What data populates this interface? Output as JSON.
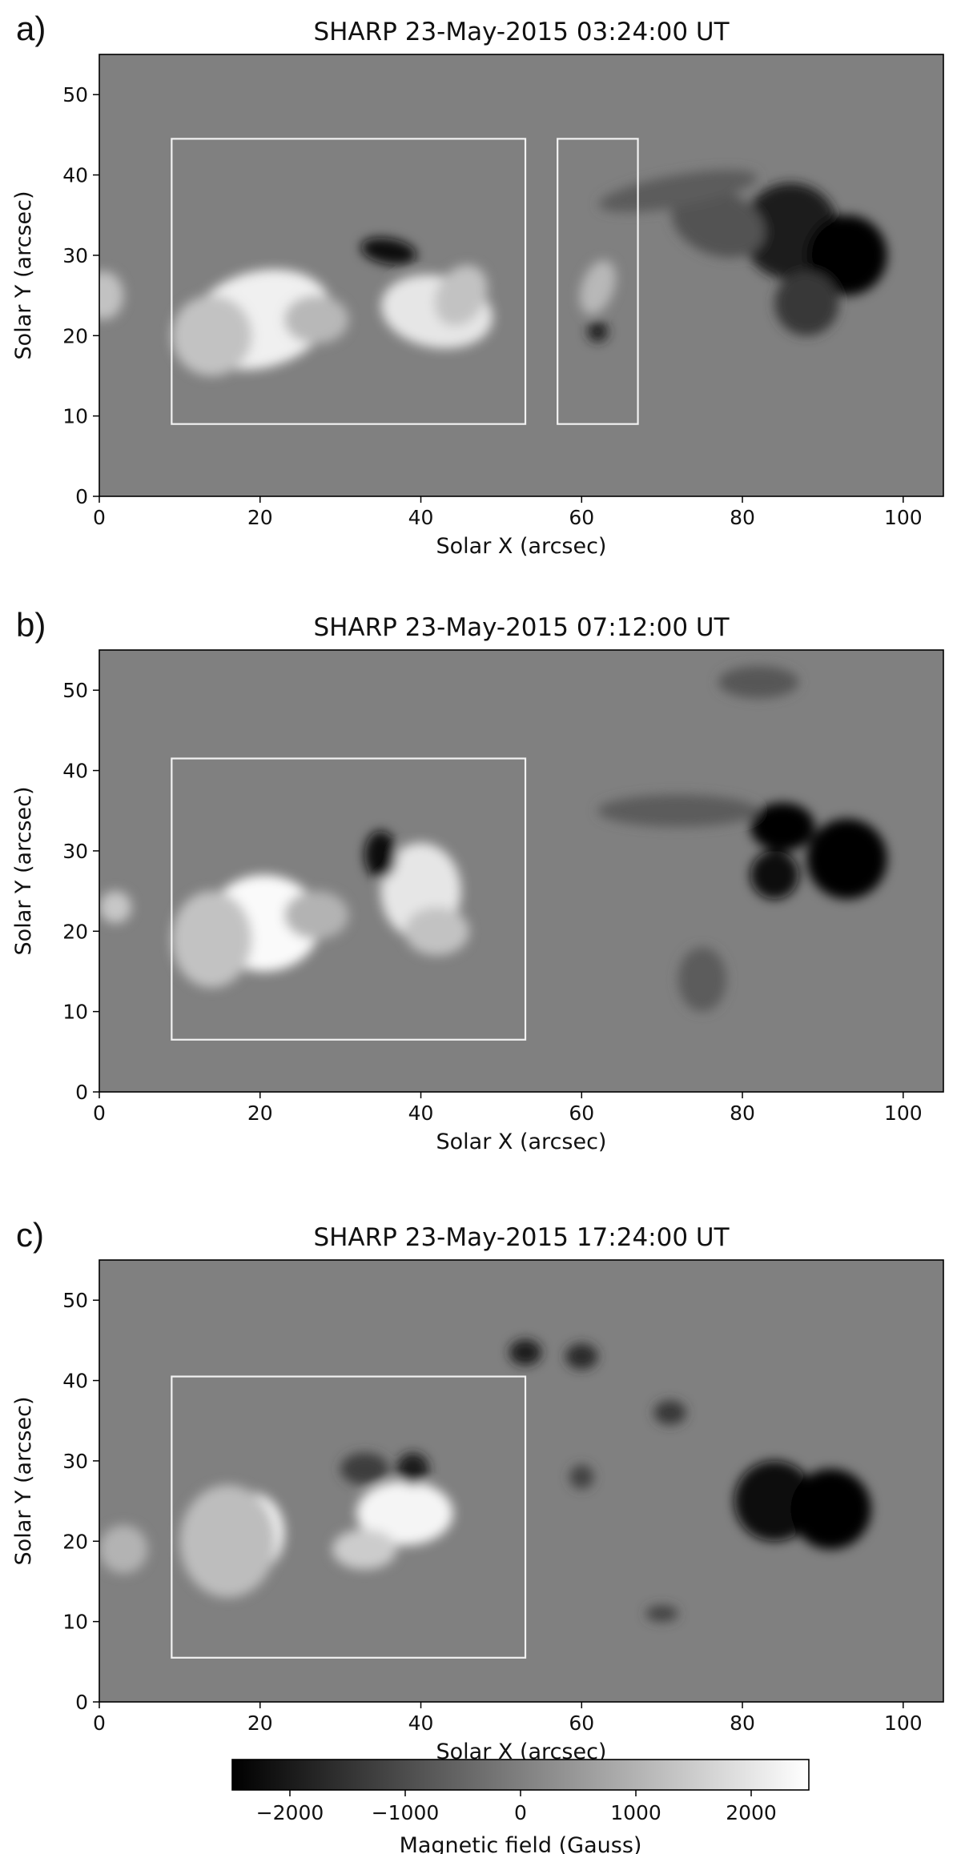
{
  "panels": [
    {
      "letter": "a)",
      "title": "SHARP 23-May-2015 03:24:00 UT",
      "boxes": [
        {
          "x": [
            9,
            53
          ],
          "y": [
            9,
            44.5
          ]
        },
        {
          "x": [
            57,
            67
          ],
          "y": [
            9,
            44.5
          ]
        }
      ],
      "blobs": [
        {
          "x": 20,
          "y": 22,
          "rx": 9,
          "ry": 6,
          "v": 2200,
          "rot": -15
        },
        {
          "x": 14,
          "y": 20,
          "rx": 5,
          "ry": 5,
          "v": 1300,
          "rot": 0
        },
        {
          "x": 27,
          "y": 22,
          "rx": 4,
          "ry": 3,
          "v": 1100,
          "rot": 0
        },
        {
          "x": 42,
          "y": 23,
          "rx": 7,
          "ry": 4.5,
          "v": 2000,
          "rot": 10
        },
        {
          "x": 45,
          "y": 25,
          "rx": 3,
          "ry": 4,
          "v": 1300,
          "rot": 30
        },
        {
          "x": 36,
          "y": 30.5,
          "rx": 3.5,
          "ry": 1.6,
          "v": -2200,
          "rot": 10
        },
        {
          "x": 62,
          "y": 26,
          "rx": 2,
          "ry": 3.5,
          "v": 1100,
          "rot": 20
        },
        {
          "x": 62,
          "y": 20.5,
          "rx": 1.3,
          "ry": 1.3,
          "v": -1800,
          "rot": 0
        },
        {
          "x": 0.5,
          "y": 25,
          "rx": 2.5,
          "ry": 3,
          "v": 1300,
          "rot": 0
        },
        {
          "x": 86,
          "y": 33,
          "rx": 6,
          "ry": 6,
          "v": -2000,
          "rot": 0
        },
        {
          "x": 93,
          "y": 30,
          "rx": 5,
          "ry": 5,
          "v": -2600,
          "rot": 0
        },
        {
          "x": 88,
          "y": 24,
          "rx": 4,
          "ry": 4,
          "v": -1400,
          "rot": 0
        },
        {
          "x": 77,
          "y": 34,
          "rx": 6,
          "ry": 4,
          "v": -900,
          "rot": 20
        },
        {
          "x": 72,
          "y": 38,
          "rx": 10,
          "ry": 2,
          "v": -700,
          "rot": -10
        }
      ]
    },
    {
      "letter": "b)",
      "title": "SHARP 23-May-2015 07:12:00 UT",
      "boxes": [
        {
          "x": [
            9,
            53
          ],
          "y": [
            6.5,
            41.5
          ]
        }
      ],
      "blobs": [
        {
          "x": 20.5,
          "y": 21,
          "rx": 7,
          "ry": 6,
          "v": 2400,
          "rot": 0
        },
        {
          "x": 14,
          "y": 19,
          "rx": 5,
          "ry": 6,
          "v": 1300,
          "rot": 0
        },
        {
          "x": 27,
          "y": 22,
          "rx": 4,
          "ry": 3,
          "v": 1000,
          "rot": 0
        },
        {
          "x": 40,
          "y": 25,
          "rx": 5,
          "ry": 6,
          "v": 2000,
          "rot": 0
        },
        {
          "x": 42,
          "y": 20,
          "rx": 4,
          "ry": 3,
          "v": 1300,
          "rot": 0
        },
        {
          "x": 35,
          "y": 29.5,
          "rx": 2,
          "ry": 3,
          "v": -2200,
          "rot": 0
        },
        {
          "x": 2,
          "y": 23,
          "rx": 2,
          "ry": 2,
          "v": 1400,
          "rot": 0
        },
        {
          "x": 85,
          "y": 33,
          "rx": 4,
          "ry": 3,
          "v": -2400,
          "rot": 0
        },
        {
          "x": 84,
          "y": 27,
          "rx": 3,
          "ry": 3,
          "v": -2200,
          "rot": 0
        },
        {
          "x": 93,
          "y": 29,
          "rx": 5,
          "ry": 5,
          "v": -2600,
          "rot": 0
        },
        {
          "x": 72,
          "y": 35,
          "rx": 10,
          "ry": 2,
          "v": -700,
          "rot": 0
        },
        {
          "x": 82,
          "y": 51,
          "rx": 5,
          "ry": 2,
          "v": -800,
          "rot": 0
        },
        {
          "x": 75,
          "y": 14,
          "rx": 3,
          "ry": 4,
          "v": -700,
          "rot": 0
        }
      ]
    },
    {
      "letter": "c)",
      "title": "SHARP 23-May-2015 17:24:00 UT",
      "boxes": [
        {
          "x": [
            9,
            53
          ],
          "y": [
            5.5,
            40.5
          ]
        }
      ],
      "blobs": [
        {
          "x": 19,
          "y": 21,
          "rx": 4,
          "ry": 5,
          "v": 2400,
          "rot": 0
        },
        {
          "x": 16,
          "y": 20,
          "rx": 6,
          "ry": 7,
          "v": 1200,
          "rot": 0
        },
        {
          "x": 38,
          "y": 23.5,
          "rx": 6,
          "ry": 4,
          "v": 2300,
          "rot": 0
        },
        {
          "x": 33,
          "y": 19,
          "rx": 4,
          "ry": 2.5,
          "v": 1500,
          "rot": 0
        },
        {
          "x": 39,
          "y": 29,
          "rx": 2,
          "ry": 2,
          "v": -2000,
          "rot": 0
        },
        {
          "x": 33,
          "y": 29,
          "rx": 3,
          "ry": 2,
          "v": -1300,
          "rot": 0
        },
        {
          "x": 53,
          "y": 43.5,
          "rx": 2,
          "ry": 1.6,
          "v": -1900,
          "rot": 0
        },
        {
          "x": 60,
          "y": 43,
          "rx": 2,
          "ry": 1.6,
          "v": -1700,
          "rot": 0
        },
        {
          "x": 71,
          "y": 36,
          "rx": 2,
          "ry": 1.5,
          "v": -1400,
          "rot": 0
        },
        {
          "x": 84,
          "y": 25,
          "rx": 5,
          "ry": 5,
          "v": -2200,
          "rot": 0
        },
        {
          "x": 91,
          "y": 24,
          "rx": 5,
          "ry": 5,
          "v": -2400,
          "rot": 0
        },
        {
          "x": 70,
          "y": 11,
          "rx": 2,
          "ry": 1,
          "v": -1200,
          "rot": 0
        },
        {
          "x": 60,
          "y": 28,
          "rx": 1.5,
          "ry": 1.5,
          "v": -1200,
          "rot": 0
        },
        {
          "x": 3,
          "y": 19,
          "rx": 3,
          "ry": 3,
          "v": 1000,
          "rot": 0
        }
      ]
    }
  ],
  "chart_data": [
    {
      "type": "heatmap",
      "title": "SHARP 23-May-2015 03:24:00 UT",
      "xlabel": "Solar X (arcsec)",
      "ylabel": "Solar Y (arcsec)",
      "xlim": [
        0,
        105
      ],
      "ylim": [
        0,
        55
      ],
      "xticks": [
        0,
        20,
        40,
        60,
        80,
        100
      ],
      "yticks": [
        0,
        10,
        20,
        30,
        40,
        50
      ],
      "grid": false
    },
    {
      "type": "heatmap",
      "title": "SHARP 23-May-2015 07:12:00 UT",
      "xlabel": "Solar X (arcsec)",
      "ylabel": "Solar Y (arcsec)",
      "xlim": [
        0,
        105
      ],
      "ylim": [
        0,
        55
      ],
      "xticks": [
        0,
        20,
        40,
        60,
        80,
        100
      ],
      "yticks": [
        0,
        10,
        20,
        30,
        40,
        50
      ],
      "grid": false
    },
    {
      "type": "heatmap",
      "title": "SHARP 23-May-2015 17:24:00 UT",
      "xlabel": "Solar X (arcsec)",
      "ylabel": "Solar Y (arcsec)",
      "xlim": [
        0,
        105
      ],
      "ylim": [
        0,
        55
      ],
      "xticks": [
        0,
        20,
        40,
        60,
        80,
        100
      ],
      "yticks": [
        0,
        10,
        20,
        30,
        40,
        50
      ],
      "grid": false
    }
  ],
  "colorbar": {
    "label": "Magnetic field (Gauss)",
    "range": [
      -2500,
      2500
    ],
    "ticks": [
      -2000,
      -1000,
      0,
      1000,
      2000
    ],
    "tick_labels": [
      "−2000",
      "−1000",
      "0",
      "1000",
      "2000"
    ],
    "colormap": "gray",
    "background_value": 0
  },
  "colors": {
    "background": "#ffffff",
    "frame": "#000000",
    "box": "#f2f2f2",
    "text": "#111111"
  }
}
